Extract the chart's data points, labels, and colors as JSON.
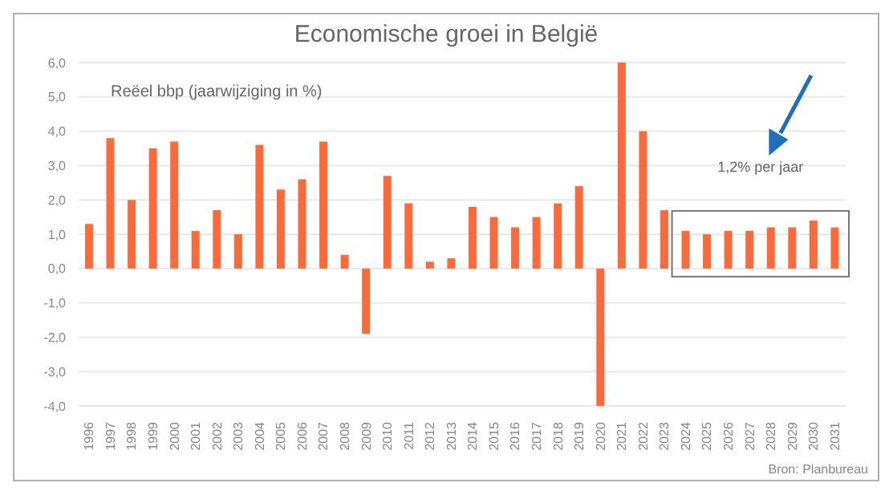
{
  "chart_data": {
    "type": "bar",
    "title": "Economische groei in België",
    "categories": [
      "1996",
      "1997",
      "1998",
      "1999",
      "2000",
      "2001",
      "2002",
      "2003",
      "2004",
      "2005",
      "2006",
      "2007",
      "2008",
      "2009",
      "2010",
      "2011",
      "2012",
      "2013",
      "2014",
      "2015",
      "2016",
      "2017",
      "2018",
      "2019",
      "2020",
      "2021",
      "2022",
      "2023",
      "2024",
      "2025",
      "2026",
      "2027",
      "2028",
      "2029",
      "2030",
      "2031"
    ],
    "values": [
      1.3,
      3.8,
      2.0,
      3.5,
      3.7,
      1.1,
      1.7,
      1.0,
      3.6,
      2.3,
      2.6,
      3.7,
      0.4,
      -1.9,
      2.7,
      1.9,
      0.2,
      0.3,
      1.8,
      1.5,
      1.2,
      1.5,
      1.9,
      2.4,
      -4.0,
      6.0,
      4.0,
      1.7,
      1.1,
      1.0,
      1.1,
      1.1,
      1.2,
      1.2,
      1.4,
      1.2
    ],
    "color": "#fb6a3a",
    "ylim": [
      -4,
      6
    ],
    "yticks": [
      {
        "value": -4,
        "label": "-4,0"
      },
      {
        "value": -3,
        "label": "-3,0"
      },
      {
        "value": -2,
        "label": "-2,0"
      },
      {
        "value": -1,
        "label": "-1,0"
      },
      {
        "value": 0,
        "label": "0,0"
      },
      {
        "value": 1,
        "label": "1,0"
      },
      {
        "value": 2,
        "label": "2,0"
      },
      {
        "value": 3,
        "label": "3,0"
      },
      {
        "value": 4,
        "label": "4,0"
      },
      {
        "value": 5,
        "label": "5,0"
      },
      {
        "value": 6,
        "label": "6,0"
      }
    ],
    "grid": "y",
    "annotations": [
      "Reëel bbp (jaarwijziging in %)",
      "1,2% per jaar",
      "Bron: Planbureau"
    ]
  }
}
